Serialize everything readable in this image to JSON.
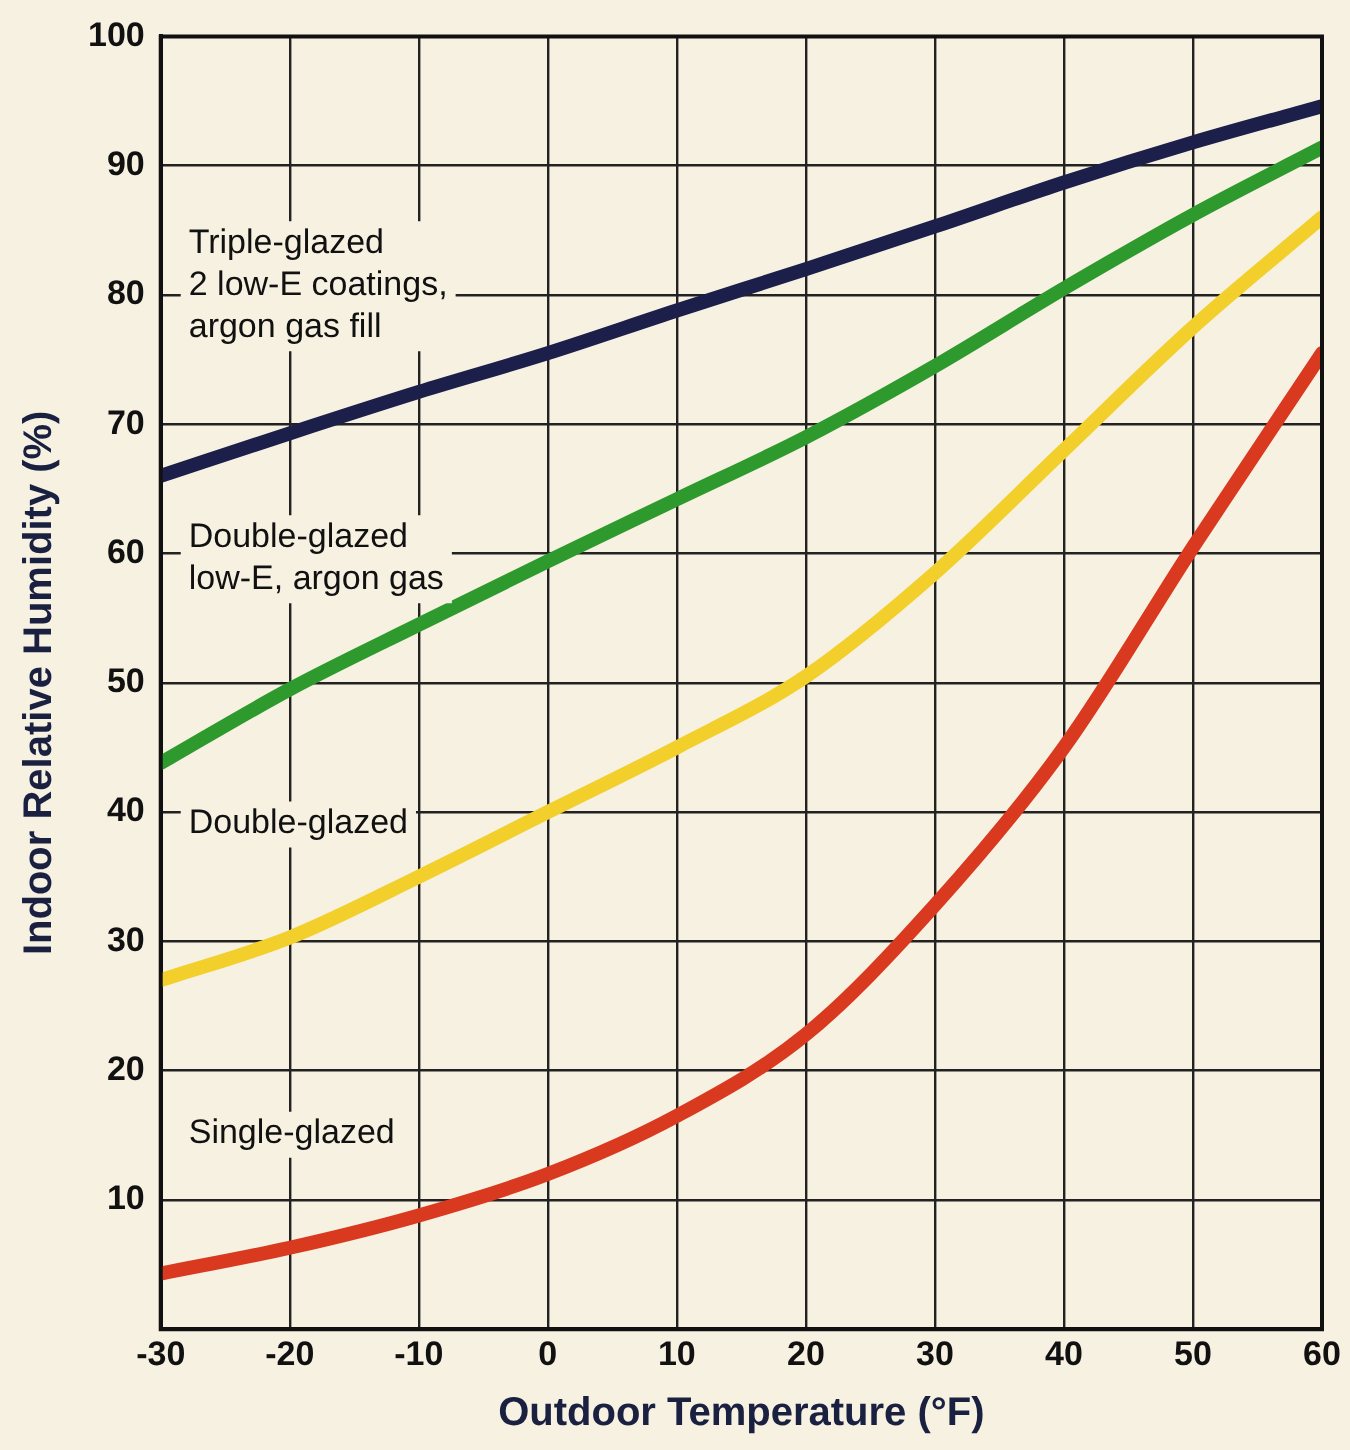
{
  "chart_data": {
    "type": "line",
    "xlabel": "Outdoor Temperature (°F)",
    "ylabel": "Indoor Relative Humidity (%)",
    "x": [
      -30,
      -20,
      -10,
      0,
      10,
      20,
      30,
      40,
      50,
      60
    ],
    "series": [
      {
        "name": "Triple-glazed\n2 low-E coatings,\nargon gas fill",
        "color": "#1c1f4a",
        "values": [
          66,
          69.3,
          72.5,
          75.5,
          78.8,
          82,
          85.3,
          88.7,
          91.8,
          94.6
        ]
      },
      {
        "name": "Double-glazed\nlow-E, argon gas",
        "color": "#2e9a2e",
        "values": [
          43.8,
          49.5,
          54.5,
          59.4,
          64.2,
          69,
          74.5,
          80.5,
          86.2,
          91.4
        ]
      },
      {
        "name": "Double-glazed",
        "color": "#f2cf2a",
        "values": [
          27,
          30.3,
          35,
          40,
          45,
          50.5,
          58.5,
          68,
          77.5,
          86
        ]
      },
      {
        "name": "Single-glazed",
        "color": "#d9391f",
        "values": [
          4.3,
          6.3,
          8.8,
          12,
          16.5,
          22.8,
          32.8,
          45,
          60.5,
          75.5
        ]
      }
    ],
    "xlim": [
      -30,
      60
    ],
    "xticks": [
      -30,
      -20,
      -10,
      0,
      10,
      20,
      30,
      40,
      50,
      60
    ],
    "ylim": [
      0,
      100
    ],
    "yticks": [
      10,
      20,
      30,
      40,
      50,
      60,
      70,
      80,
      90,
      100
    ],
    "grid": true,
    "legend": false,
    "marker": "none",
    "line_style": "solid"
  }
}
